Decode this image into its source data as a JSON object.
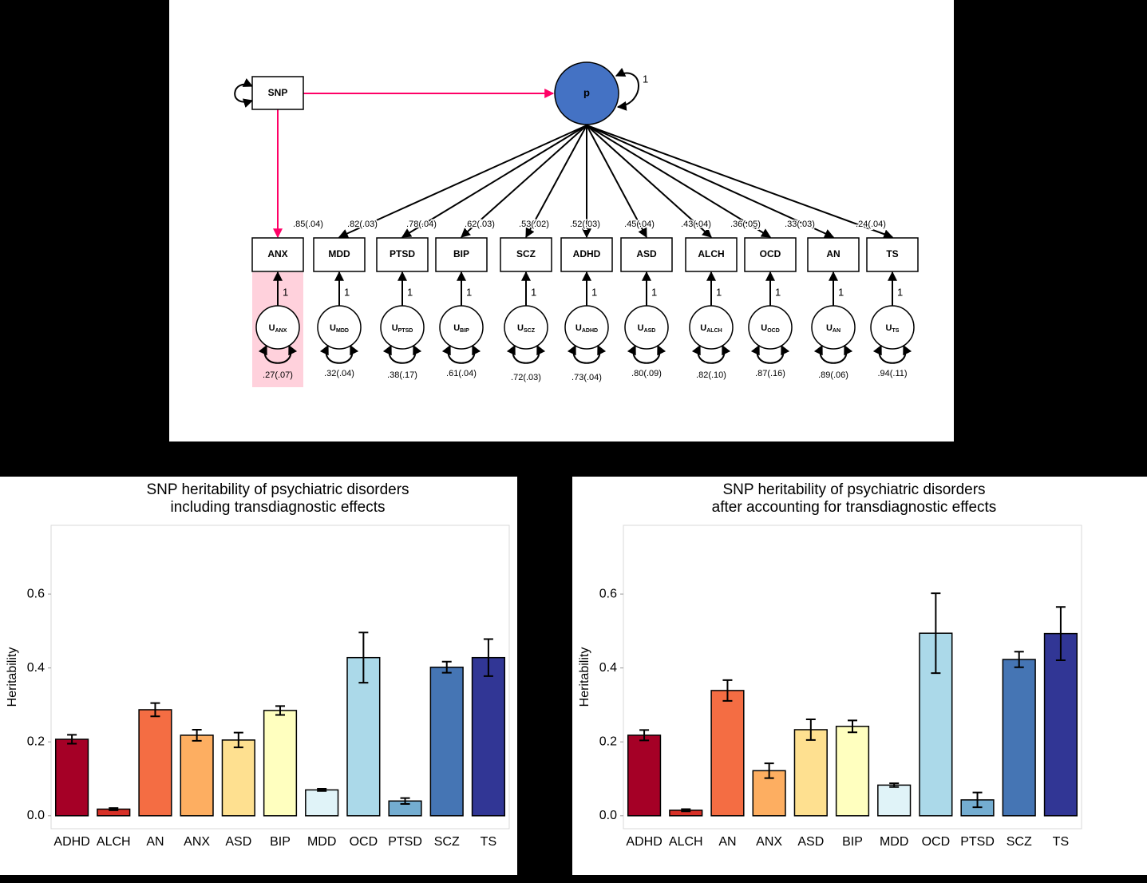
{
  "diagram": {
    "snp": "SNP",
    "factor": "p",
    "factor_variance": "1",
    "indicators": [
      "ANX",
      "MDD",
      "PTSD",
      "BIP",
      "SCZ",
      "ADHD",
      "ASD",
      "ALCH",
      "OCD",
      "AN",
      "TS"
    ],
    "loadings": [
      ".85(.04)",
      ".82(.03)",
      ".78(.04)",
      ".62(.03)",
      ".53(.02)",
      ".52(.03)",
      ".45(.04)",
      ".43(.04)",
      ".36(.05)",
      ".33(.03)",
      ".24(.04)"
    ],
    "residual_letter": "U",
    "residual_loading": "1",
    "residual_variances": [
      ".27(.07)",
      ".32(.04)",
      ".38(.17)",
      ".61(.04)",
      ".72(.03)",
      ".73(.04)",
      ".80(.09)",
      ".82(.10)",
      ".87(.16)",
      ".89(.06)",
      ".94(.11)"
    ]
  },
  "chart_data": [
    {
      "type": "bar",
      "title": [
        "SNP heritability of psychiatric disorders",
        "including transdiagnostic effects"
      ],
      "y_label": "Heritability",
      "categories": [
        "ADHD",
        "ALCH",
        "AN",
        "ANX",
        "ASD",
        "BIP",
        "MDD",
        "OCD",
        "PTSD",
        "SCZ",
        "TS"
      ],
      "values": [
        0.207,
        0.018,
        0.287,
        0.218,
        0.205,
        0.285,
        0.07,
        0.428,
        0.04,
        0.402,
        0.428
      ],
      "errors": [
        0.012,
        0.003,
        0.018,
        0.015,
        0.02,
        0.012,
        0.003,
        0.068,
        0.008,
        0.015,
        0.05
      ],
      "colors": [
        "#a50026",
        "#d73027",
        "#f46d43",
        "#fdae61",
        "#fee090",
        "#ffffbf",
        "#e0f3f8",
        "#abd9e9",
        "#74add1",
        "#4575b4",
        "#313695"
      ],
      "ylim": [
        -0.035,
        0.786
      ],
      "yticks": [
        {
          "value": 0,
          "label": "0.0"
        },
        0.2,
        0.4,
        0.6
      ],
      "grid": false
    },
    {
      "type": "bar",
      "title": [
        "SNP heritability of psychiatric disorders",
        "after accounting for transdiagnostic effects"
      ],
      "y_label": "Heritability",
      "categories": [
        "ADHD",
        "ALCH",
        "AN",
        "ANX",
        "ASD",
        "BIP",
        "MDD",
        "OCD",
        "PTSD",
        "SCZ",
        "TS"
      ],
      "values": [
        0.218,
        0.015,
        0.339,
        0.122,
        0.233,
        0.242,
        0.083,
        0.494,
        0.043,
        0.423,
        0.493
      ],
      "errors": [
        0.014,
        0.003,
        0.028,
        0.02,
        0.028,
        0.016,
        0.005,
        0.108,
        0.02,
        0.021,
        0.072
      ],
      "colors": [
        "#a50026",
        "#d73027",
        "#f46d43",
        "#fdae61",
        "#fee090",
        "#ffffbf",
        "#e0f3f8",
        "#abd9e9",
        "#74add1",
        "#4575b4",
        "#313695"
      ],
      "ylim": [
        -0.035,
        0.786
      ],
      "yticks": [
        {
          "value": 0,
          "label": "0.0"
        },
        0.2,
        0.4,
        0.6
      ],
      "grid": false
    }
  ]
}
